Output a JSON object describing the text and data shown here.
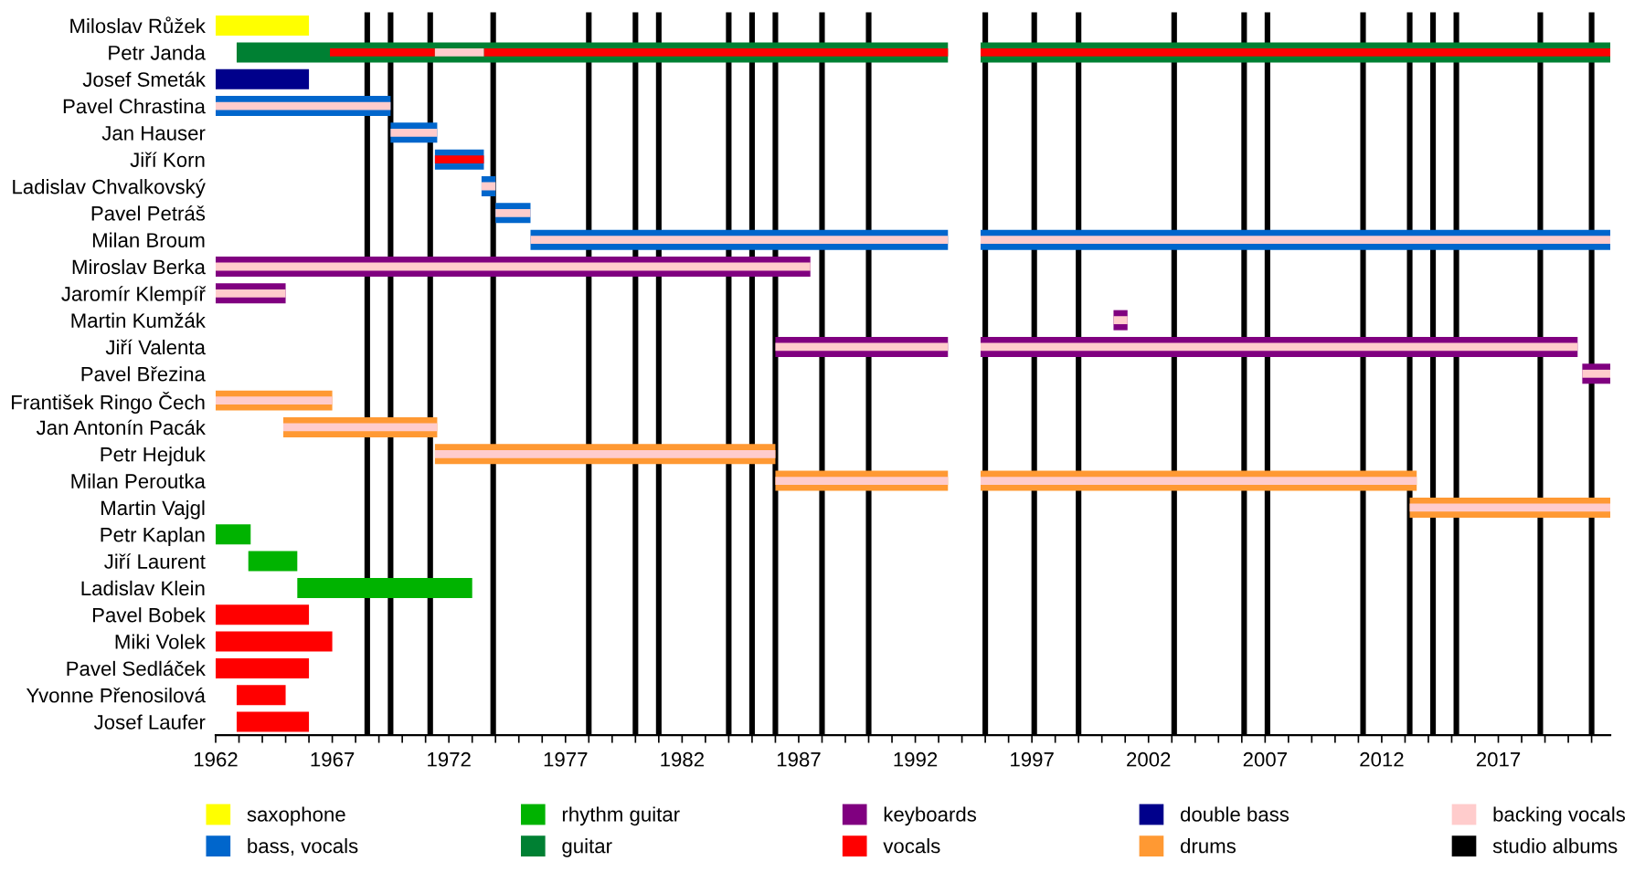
{
  "chart_data": {
    "type": "bar",
    "orientation": "horizontal",
    "legend": "bottom",
    "categories": [
      "Miloslav Růžek",
      "Petr Janda",
      "Josef Smeták",
      "Pavel Chrastina",
      "Jan Hauser",
      "Jiří Korn",
      "Ladislav Chvalkovský",
      "Pavel Petráš",
      "Milan Broum",
      "Miroslav Berka",
      "Jaromír Klempíř",
      "Martin Kumžák",
      "Jiří Valenta",
      "Pavel Březina",
      "František Ringo Čech",
      "Jan Antonín Pacák",
      "Petr Hejduk",
      "Milan Peroutka",
      "Martin Vajgl",
      "Petr Kaplan",
      "Jiří Laurent",
      "Ladislav Klein",
      "Pavel Bobek",
      "Miki Volek",
      "Pavel Sedláček",
      "Yvonne Přenosilová",
      "Josef Laufer"
    ],
    "series": [
      {
        "name": "saxophone",
        "color": "#ffff00",
        "values": [
          4,
          null,
          null,
          null,
          null,
          null,
          null,
          null,
          null,
          null,
          null,
          null,
          null,
          null,
          null,
          null,
          null,
          null,
          null,
          null,
          null,
          null,
          null,
          null,
          null,
          null,
          null
        ],
        "base": [
          1962,
          null,
          null,
          null,
          null,
          null,
          null,
          null,
          null,
          null,
          null,
          null,
          null,
          null,
          null,
          null,
          null,
          null,
          null,
          null,
          null,
          null,
          null,
          null,
          null,
          null,
          null
        ]
      },
      {
        "name": "bass, vocals",
        "color": "#0066cc",
        "values": [
          null,
          null,
          null,
          7.5,
          2.0,
          2.1,
          0.6,
          1.5,
          17.9,
          null,
          null,
          null,
          null,
          null,
          null,
          null,
          null,
          null,
          null,
          null,
          null,
          null,
          null,
          null,
          null,
          null,
          null
        ],
        "base": [
          null,
          null,
          null,
          1962,
          1969.5,
          1971.4,
          1973.4,
          1974.0,
          1975.5,
          null,
          null,
          null,
          null,
          null,
          null,
          null,
          null,
          null,
          null,
          null,
          null,
          null,
          null,
          null,
          null,
          null,
          null
        ]
      },
      {
        "name": "rhythm guitar",
        "color": "#00b300",
        "values": [
          null,
          null,
          null,
          null,
          null,
          null,
          null,
          null,
          null,
          null,
          null,
          null,
          null,
          null,
          null,
          null,
          null,
          null,
          null,
          1.5,
          2.1,
          7.5,
          null,
          null,
          null,
          null,
          null
        ],
        "base": [
          null,
          null,
          null,
          null,
          null,
          null,
          null,
          null,
          null,
          null,
          null,
          null,
          null,
          null,
          null,
          null,
          null,
          null,
          null,
          1962,
          1963.4,
          1965.5,
          null,
          null,
          null,
          null,
          null
        ]
      },
      {
        "name": "guitar",
        "color": "#008033",
        "values": [
          null,
          30.5,
          null,
          null,
          null,
          null,
          null,
          null,
          null,
          null,
          null,
          null,
          null,
          null,
          null,
          null,
          null,
          null,
          null,
          null,
          null,
          null,
          null,
          null,
          null,
          null,
          null
        ],
        "base": [
          null,
          1962.9,
          null,
          null,
          null,
          null,
          null,
          null,
          null,
          null,
          null,
          null,
          null,
          null,
          null,
          null,
          null,
          null,
          null,
          null,
          null,
          null,
          null,
          null,
          null,
          null,
          null
        ]
      },
      {
        "name": "keyboards",
        "color": "#800080",
        "values": [
          null,
          null,
          null,
          null,
          null,
          null,
          null,
          null,
          null,
          25.5,
          3.0,
          0.6,
          7.4,
          1.2,
          null,
          null,
          null,
          null,
          null,
          null,
          null,
          null,
          null,
          null,
          null,
          null,
          null
        ],
        "base": [
          null,
          null,
          null,
          null,
          null,
          null,
          null,
          null,
          null,
          1962,
          1962,
          2000.5,
          1986.0,
          2020.6,
          null,
          null,
          null,
          null,
          null,
          null,
          null,
          null,
          null,
          null,
          null,
          null,
          null
        ]
      },
      {
        "name": "vocals",
        "color": "#ff0000",
        "values": [
          null,
          null,
          null,
          null,
          null,
          null,
          null,
          null,
          null,
          null,
          null,
          null,
          null,
          null,
          null,
          null,
          null,
          null,
          null,
          null,
          null,
          null,
          4.0,
          5.0,
          4.0,
          2.1,
          3.1
        ],
        "base": [
          null,
          null,
          null,
          null,
          null,
          null,
          null,
          null,
          null,
          null,
          null,
          null,
          null,
          null,
          null,
          null,
          null,
          null,
          null,
          null,
          null,
          null,
          1962,
          1962,
          1962,
          1962.9,
          1962.9
        ]
      },
      {
        "name": "double bass",
        "color": "#00008b",
        "values": [
          null,
          null,
          4,
          null,
          null,
          null,
          null,
          null,
          null,
          null,
          null,
          null,
          null,
          null,
          null,
          null,
          null,
          null,
          null,
          null,
          null,
          null,
          null,
          null,
          null,
          null,
          null
        ],
        "base": [
          null,
          null,
          1962,
          null,
          null,
          null,
          null,
          null,
          null,
          null,
          null,
          null,
          null,
          null,
          null,
          null,
          null,
          null,
          null,
          null,
          null,
          null,
          null,
          null,
          null,
          null,
          null
        ]
      },
      {
        "name": "drums",
        "color": "#ff9933",
        "values": [
          null,
          null,
          null,
          null,
          null,
          null,
          null,
          null,
          null,
          null,
          null,
          null,
          null,
          null,
          5.0,
          6.6,
          14.6,
          7.4,
          8.6,
          null,
          null,
          null,
          null,
          null,
          null,
          null,
          null
        ],
        "base": [
          null,
          null,
          null,
          null,
          null,
          null,
          null,
          null,
          null,
          null,
          null,
          null,
          null,
          null,
          1962,
          1964.9,
          1971.4,
          1986.0,
          2013.2,
          null,
          null,
          null,
          null,
          null,
          null,
          null,
          null
        ]
      },
      {
        "color": "#008033",
        "values": [
          null,
          27.0,
          null,
          null,
          null,
          null,
          null,
          null,
          null,
          null,
          null,
          null,
          null,
          null,
          null,
          null,
          null,
          null,
          null,
          null,
          null,
          null,
          null,
          null,
          null,
          null,
          null
        ],
        "base": [
          null,
          1994.8,
          null,
          null,
          null,
          null,
          null,
          null,
          null,
          null,
          null,
          null,
          null,
          null,
          null,
          null,
          null,
          null,
          null,
          null,
          null,
          null,
          null,
          null,
          null,
          null,
          null
        ]
      },
      {
        "color": "#0066cc",
        "values": [
          null,
          null,
          null,
          null,
          null,
          null,
          null,
          null,
          27.0,
          null,
          null,
          null,
          null,
          null,
          null,
          null,
          null,
          null,
          null,
          null,
          null,
          null,
          null,
          null,
          null,
          null,
          null
        ],
        "base": [
          null,
          null,
          null,
          null,
          null,
          null,
          null,
          null,
          1994.8,
          null,
          null,
          null,
          null,
          null,
          null,
          null,
          null,
          null,
          null,
          null,
          null,
          null,
          null,
          null,
          null,
          null,
          null
        ]
      },
      {
        "color": "#800080",
        "values": [
          null,
          null,
          null,
          null,
          null,
          null,
          null,
          null,
          null,
          null,
          null,
          null,
          25.6,
          null,
          null,
          null,
          null,
          null,
          null,
          null,
          null,
          null,
          null,
          null,
          null,
          null,
          null
        ],
        "base": [
          null,
          null,
          null,
          null,
          null,
          null,
          null,
          null,
          null,
          null,
          null,
          null,
          1994.8,
          null,
          null,
          null,
          null,
          null,
          null,
          null,
          null,
          null,
          null,
          null,
          null,
          null,
          null
        ]
      },
      {
        "color": "#ff9933",
        "values": [
          null,
          null,
          null,
          null,
          null,
          null,
          null,
          null,
          null,
          null,
          null,
          null,
          null,
          null,
          null,
          null,
          null,
          18.7,
          null,
          null,
          null,
          null,
          null,
          null,
          null,
          null,
          null
        ],
        "base": [
          null,
          null,
          null,
          null,
          null,
          null,
          null,
          null,
          null,
          null,
          null,
          null,
          null,
          null,
          null,
          null,
          null,
          1994.8,
          null,
          null,
          null,
          null,
          null,
          null,
          null,
          null,
          null
        ]
      },
      {
        "color": "#ff0000",
        "values": [
          null,
          4.5,
          null,
          null,
          null,
          2.1,
          null,
          null,
          null,
          null,
          null,
          null,
          null,
          null,
          null,
          null,
          null,
          null,
          null,
          null,
          null,
          null,
          null,
          null,
          null,
          null,
          null
        ],
        "base": [
          null,
          1966.9,
          null,
          null,
          null,
          1971.4,
          null,
          null,
          null,
          null,
          null,
          null,
          null,
          null,
          null,
          null,
          null,
          null,
          null,
          null,
          null,
          null,
          null,
          null,
          null,
          null,
          null
        ]
      },
      {
        "color": "#ff0000",
        "values": [
          null,
          19.9,
          null,
          null,
          null,
          null,
          null,
          null,
          null,
          null,
          null,
          null,
          null,
          null,
          null,
          null,
          null,
          null,
          null,
          null,
          null,
          null,
          null,
          null,
          null,
          null,
          null
        ],
        "base": [
          null,
          1973.5,
          null,
          null,
          null,
          null,
          null,
          null,
          null,
          null,
          null,
          null,
          null,
          null,
          null,
          null,
          null,
          null,
          null,
          null,
          null,
          null,
          null,
          null,
          null,
          null,
          null
        ]
      },
      {
        "color": "#ff0000",
        "values": [
          null,
          27.0,
          null,
          null,
          null,
          null,
          null,
          null,
          null,
          null,
          null,
          null,
          null,
          null,
          null,
          null,
          null,
          null,
          null,
          null,
          null,
          null,
          null,
          null,
          null,
          null,
          null
        ],
        "base": [
          null,
          1994.8,
          null,
          null,
          null,
          null,
          null,
          null,
          null,
          null,
          null,
          null,
          null,
          null,
          null,
          null,
          null,
          null,
          null,
          null,
          null,
          null,
          null,
          null,
          null,
          null,
          null
        ]
      },
      {
        "name": "backing vocals",
        "color": "#ffcccc",
        "values": [
          null,
          2.1,
          null,
          7.5,
          2.0,
          null,
          0.6,
          1.5,
          17.9,
          25.5,
          3.0,
          0.6,
          7.4,
          1.2,
          5.0,
          6.6,
          14.6,
          7.4,
          8.6,
          null,
          null,
          null,
          null,
          null,
          null,
          null,
          null
        ],
        "base": [
          null,
          1971.4,
          null,
          1962,
          1969.5,
          null,
          1973.4,
          1974.0,
          1975.5,
          1962,
          1962,
          2000.5,
          1986.0,
          2020.6,
          1962,
          1964.9,
          1971.4,
          1986.0,
          2013.2,
          null,
          null,
          null,
          null,
          null,
          null,
          null,
          null
        ]
      },
      {
        "color": "#ffcccc",
        "values": [
          null,
          null,
          null,
          null,
          null,
          null,
          null,
          null,
          27.0,
          null,
          null,
          null,
          25.6,
          null,
          null,
          null,
          null,
          18.7,
          null,
          null,
          null,
          null,
          null,
          null,
          null,
          null,
          null
        ],
        "base": [
          null,
          null,
          null,
          null,
          null,
          null,
          null,
          null,
          1994.8,
          null,
          null,
          null,
          1994.8,
          null,
          null,
          null,
          null,
          1994.8,
          null,
          null,
          null,
          null,
          null,
          null,
          null,
          null,
          null
        ]
      }
    ],
    "ref_lines": [
      {
        "axis": "x",
        "value": 1968.5,
        "color": "#000000",
        "label": "studio albums"
      },
      {
        "axis": "x",
        "value": 1969.5,
        "color": "#000000"
      },
      {
        "axis": "x",
        "value": 1971.2,
        "color": "#000000"
      },
      {
        "axis": "x",
        "value": 1973.9,
        "color": "#000000"
      },
      {
        "axis": "x",
        "value": 1978.0,
        "color": "#000000"
      },
      {
        "axis": "x",
        "value": 1980.0,
        "color": "#000000"
      },
      {
        "axis": "x",
        "value": 1981.0,
        "color": "#000000"
      },
      {
        "axis": "x",
        "value": 1984.0,
        "color": "#000000"
      },
      {
        "axis": "x",
        "value": 1985.0,
        "color": "#000000"
      },
      {
        "axis": "x",
        "value": 1986.0,
        "color": "#000000"
      },
      {
        "axis": "x",
        "value": 1988.0,
        "color": "#000000"
      },
      {
        "axis": "x",
        "value": 1990.0,
        "color": "#000000"
      },
      {
        "axis": "x",
        "value": 1995.0,
        "color": "#000000"
      },
      {
        "axis": "x",
        "value": 1997.1,
        "color": "#000000"
      },
      {
        "axis": "x",
        "value": 1999.0,
        "color": "#000000"
      },
      {
        "axis": "x",
        "value": 2003.1,
        "color": "#000000"
      },
      {
        "axis": "x",
        "value": 2006.1,
        "color": "#000000"
      },
      {
        "axis": "x",
        "value": 2007.1,
        "color": "#000000"
      },
      {
        "axis": "x",
        "value": 2011.2,
        "color": "#000000"
      },
      {
        "axis": "x",
        "value": 2013.2,
        "color": "#000000"
      },
      {
        "axis": "x",
        "value": 2014.2,
        "color": "#000000"
      },
      {
        "axis": "x",
        "value": 2015.2,
        "color": "#000000"
      },
      {
        "axis": "x",
        "value": 2018.8,
        "color": "#000000"
      },
      {
        "axis": "x",
        "value": 2021.0,
        "color": "#000000"
      }
    ],
    "xlim": [
      1962,
      2021.8
    ],
    "xticks": [
      1962,
      {
        "value": 1963,
        "label": null
      },
      {
        "value": 1964,
        "label": null
      },
      {
        "value": 1965,
        "label": null
      },
      {
        "value": 1966,
        "label": null
      },
      1967,
      {
        "value": 1968,
        "label": null
      },
      {
        "value": 1969,
        "label": null
      },
      {
        "value": 1970,
        "label": null
      },
      {
        "value": 1971,
        "label": null
      },
      1972,
      {
        "value": 1973,
        "label": null
      },
      {
        "value": 1974,
        "label": null
      },
      {
        "value": 1975,
        "label": null
      },
      {
        "value": 1976,
        "label": null
      },
      1977,
      {
        "value": 1978,
        "label": null
      },
      {
        "value": 1979,
        "label": null
      },
      {
        "value": 1980,
        "label": null
      },
      {
        "value": 1981,
        "label": null
      },
      1982,
      {
        "value": 1983,
        "label": null
      },
      {
        "value": 1984,
        "label": null
      },
      {
        "value": 1985,
        "label": null
      },
      {
        "value": 1986,
        "label": null
      },
      1987,
      {
        "value": 1988,
        "label": null
      },
      {
        "value": 1989,
        "label": null
      },
      {
        "value": 1990,
        "label": null
      },
      {
        "value": 1991,
        "label": null
      },
      1992,
      {
        "value": 1993,
        "label": null
      },
      {
        "value": 1994,
        "label": null
      },
      {
        "value": 1995,
        "label": null
      },
      {
        "value": 1996,
        "label": null
      },
      1997,
      {
        "value": 1998,
        "label": null
      },
      {
        "value": 1999,
        "label": null
      },
      {
        "value": 2000,
        "label": null
      },
      {
        "value": 2001,
        "label": null
      },
      2002,
      {
        "value": 2003,
        "label": null
      },
      {
        "value": 2004,
        "label": null
      },
      {
        "value": 2005,
        "label": null
      },
      {
        "value": 2006,
        "label": null
      },
      2007,
      {
        "value": 2008,
        "label": null
      },
      {
        "value": 2009,
        "label": null
      },
      {
        "value": 2010,
        "label": null
      },
      {
        "value": 2011,
        "label": null
      },
      2012,
      {
        "value": 2013,
        "label": null
      },
      {
        "value": 2014,
        "label": null
      },
      {
        "value": 2015,
        "label": null
      },
      {
        "value": 2016,
        "label": null
      },
      2017,
      {
        "value": 2018,
        "label": null
      },
      {
        "value": 2019,
        "label": null
      },
      {
        "value": 2020,
        "label": null
      },
      {
        "value": 2021,
        "label": null
      }
    ]
  }
}
